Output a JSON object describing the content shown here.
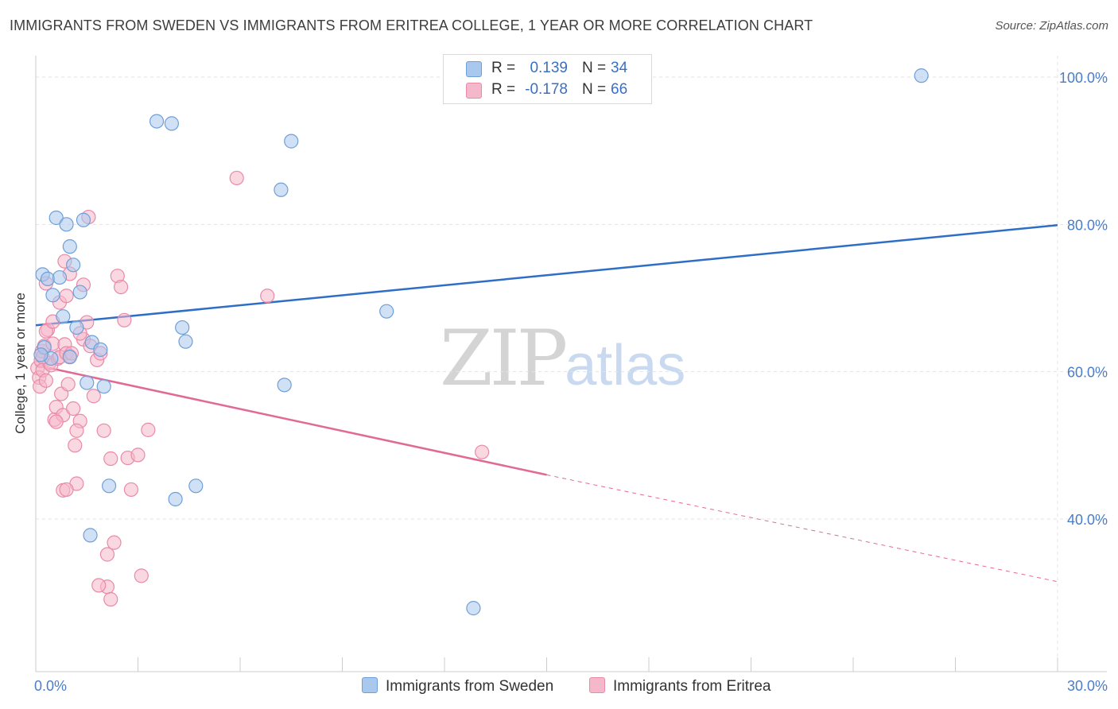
{
  "header": {
    "title": "IMMIGRANTS FROM SWEDEN VS IMMIGRANTS FROM ERITREA COLLEGE, 1 YEAR OR MORE CORRELATION CHART",
    "source": "Source: ZipAtlas.com"
  },
  "legend": {
    "sweden": {
      "r_label": "R =",
      "r_value": "0.139",
      "n_label": "N =",
      "n_value": "34"
    },
    "eritrea": {
      "r_label": "R =",
      "r_value": "-0.178",
      "n_label": "N =",
      "n_value": "66"
    }
  },
  "bottom_legend": {
    "sweden": "Immigrants from Sweden",
    "eritrea": "Immigrants from Eritrea"
  },
  "watermark": {
    "zip": "ZIP",
    "atlas": "atlas"
  },
  "colors": {
    "sweden_fill": "#a9c8ee",
    "sweden_stroke": "#6f9fd8",
    "sweden_line": "#2f6ec7",
    "eritrea_fill": "#f5b8cb",
    "eritrea_stroke": "#e98aa8",
    "eritrea_line": "#e06a95",
    "tick_text": "#4a7dc9",
    "grid": "#e3e3e3"
  },
  "chart_data": {
    "type": "scatter",
    "title": "IMMIGRANTS FROM SWEDEN VS IMMIGRANTS FROM ERITREA COLLEGE, 1 YEAR OR MORE CORRELATION CHART",
    "xlabel": "",
    "ylabel": "College, 1 year or more",
    "xlim": [
      0,
      30
    ],
    "ylim": [
      20,
      103
    ],
    "x_ticks": [
      0,
      30
    ],
    "x_tick_labels": [
      "0.0%",
      "30.0%"
    ],
    "y_ticks": [
      40,
      60,
      80,
      100
    ],
    "y_tick_labels": [
      "40.0%",
      "60.0%",
      "80.0%",
      "100.0%"
    ],
    "grid": true,
    "legend_position": "top-center",
    "series": [
      {
        "name": "Immigrants from Sweden",
        "points": [
          [
            0.2,
            73.2
          ],
          [
            0.35,
            72.6
          ],
          [
            0.5,
            70.4
          ],
          [
            0.6,
            80.9
          ],
          [
            0.7,
            72.8
          ],
          [
            0.8,
            67.5
          ],
          [
            0.9,
            80.0
          ],
          [
            1.0,
            77.0
          ],
          [
            1.1,
            74.5
          ],
          [
            0.25,
            63.3
          ],
          [
            0.45,
            61.8
          ],
          [
            1.2,
            66.0
          ],
          [
            1.3,
            70.8
          ],
          [
            1.4,
            80.6
          ],
          [
            1.5,
            58.5
          ],
          [
            2.0,
            58.0
          ],
          [
            1.65,
            64.0
          ],
          [
            1.9,
            63.0
          ],
          [
            2.15,
            44.5
          ],
          [
            1.6,
            37.8
          ],
          [
            3.55,
            94.0
          ],
          [
            3.99,
            93.7
          ],
          [
            7.2,
            84.7
          ],
          [
            7.5,
            91.3
          ],
          [
            7.3,
            58.2
          ],
          [
            4.3,
            66.0
          ],
          [
            4.4,
            64.1
          ],
          [
            4.1,
            42.7
          ],
          [
            4.7,
            44.5
          ],
          [
            10.3,
            68.2
          ],
          [
            12.85,
            27.9
          ],
          [
            26.0,
            100.2
          ],
          [
            0.15,
            62.3
          ],
          [
            1.0,
            62.0
          ]
        ]
      },
      {
        "name": "Immigrants from Eritrea",
        "points": [
          [
            0.05,
            60.5
          ],
          [
            0.1,
            59.2
          ],
          [
            0.12,
            58.0
          ],
          [
            0.15,
            61.5
          ],
          [
            0.18,
            62.8
          ],
          [
            0.2,
            60.2
          ],
          [
            0.25,
            63.5
          ],
          [
            0.3,
            58.8
          ],
          [
            0.35,
            65.7
          ],
          [
            0.4,
            61.2
          ],
          [
            0.45,
            60.9
          ],
          [
            0.5,
            63.8
          ],
          [
            0.55,
            53.5
          ],
          [
            0.6,
            55.2
          ],
          [
            0.65,
            61.8
          ],
          [
            0.7,
            62.0
          ],
          [
            0.75,
            57.0
          ],
          [
            0.8,
            54.1
          ],
          [
            0.85,
            63.7
          ],
          [
            0.9,
            62.5
          ],
          [
            0.95,
            58.3
          ],
          [
            1.0,
            62.1
          ],
          [
            1.05,
            62.5
          ],
          [
            1.1,
            55.0
          ],
          [
            1.15,
            50.0
          ],
          [
            1.2,
            44.8
          ],
          [
            1.3,
            53.3
          ],
          [
            1.4,
            64.4
          ],
          [
            1.5,
            66.7
          ],
          [
            1.55,
            81.0
          ],
          [
            1.6,
            63.5
          ],
          [
            1.7,
            56.7
          ],
          [
            1.8,
            61.6
          ],
          [
            1.9,
            62.5
          ],
          [
            2.0,
            52.0
          ],
          [
            2.1,
            35.2
          ],
          [
            2.2,
            48.2
          ],
          [
            2.3,
            36.8
          ],
          [
            2.4,
            73.0
          ],
          [
            2.5,
            71.5
          ],
          [
            2.6,
            67.0
          ],
          [
            2.7,
            48.3
          ],
          [
            2.8,
            44.0
          ],
          [
            3.0,
            48.7
          ],
          [
            3.1,
            32.3
          ],
          [
            3.3,
            52.1
          ],
          [
            5.9,
            86.3
          ],
          [
            6.8,
            70.3
          ],
          [
            0.7,
            69.4
          ],
          [
            0.85,
            75.0
          ],
          [
            0.9,
            70.3
          ],
          [
            1.0,
            73.3
          ],
          [
            1.4,
            71.8
          ],
          [
            0.3,
            72.0
          ],
          [
            0.6,
            53.2
          ],
          [
            0.3,
            65.5
          ],
          [
            2.1,
            30.8
          ],
          [
            2.2,
            29.1
          ],
          [
            0.8,
            43.9
          ],
          [
            1.2,
            52.0
          ],
          [
            13.1,
            49.1
          ],
          [
            1.85,
            31.0
          ],
          [
            0.9,
            44.0
          ],
          [
            0.2,
            62.0
          ],
          [
            1.3,
            65.2
          ],
          [
            0.5,
            66.8
          ]
        ]
      }
    ],
    "trend_lines": [
      {
        "name": "Immigrants from Sweden",
        "x": [
          0,
          30
        ],
        "y": [
          66.3,
          79.9
        ],
        "style": "solid"
      },
      {
        "name": "Immigrants from Eritrea",
        "solid_x": [
          0,
          15
        ],
        "solid_y": [
          60.9,
          46.0
        ],
        "dashed_x": [
          15,
          30
        ],
        "dashed_y": [
          46.0,
          31.5
        ]
      }
    ]
  }
}
